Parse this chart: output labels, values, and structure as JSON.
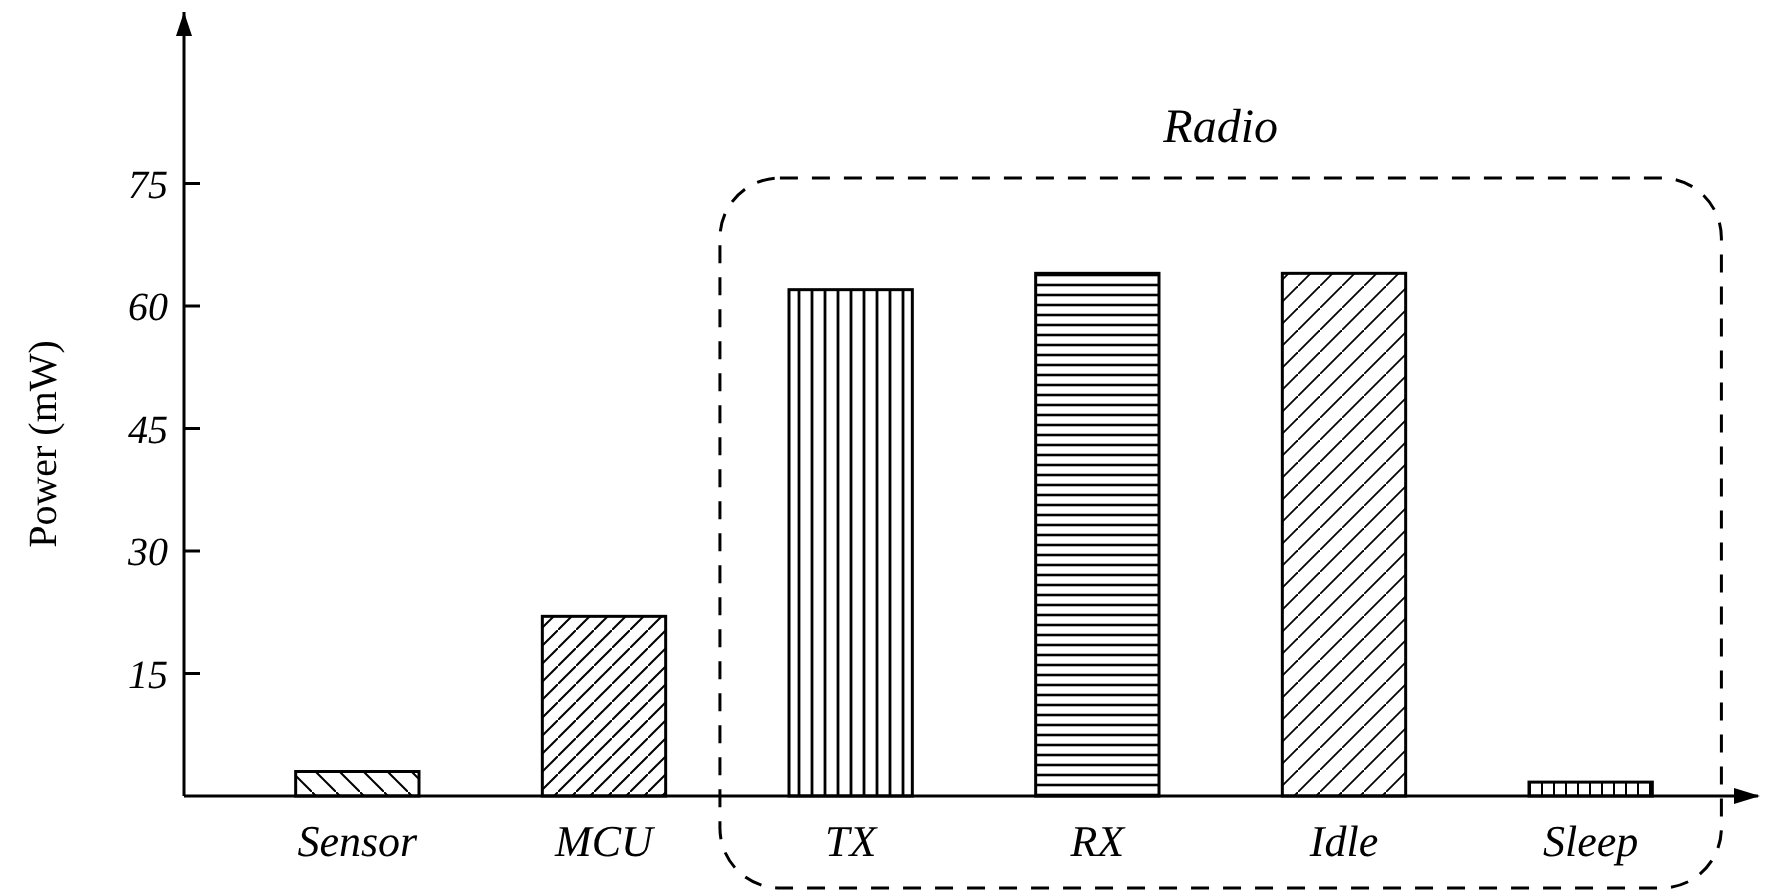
{
  "chart_data": {
    "type": "bar",
    "ylabel": "Power (mW)",
    "categories": [
      "Sensor",
      "MCU",
      "TX",
      "RX",
      "Idle",
      "Sleep"
    ],
    "values": [
      3,
      22,
      62,
      64,
      64,
      1.7
    ],
    "color": "#000000",
    "ylim": [
      0,
      96
    ],
    "yticks": [
      15,
      30,
      45,
      60,
      75
    ],
    "annotations": [
      "Radio"
    ]
  }
}
